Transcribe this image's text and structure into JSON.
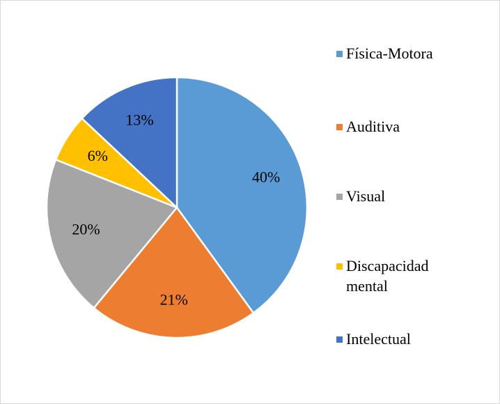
{
  "chart_data": {
    "type": "pie",
    "categories": [
      "Física-Motora",
      "Auditiva",
      "Visual",
      "Discapacidad mental",
      "Intelectual"
    ],
    "values": [
      40,
      21,
      20,
      6,
      13
    ],
    "value_labels": [
      "40%",
      "21%",
      "20%",
      "6%",
      "13%"
    ],
    "colors": [
      "#5b9bd5",
      "#ed7d31",
      "#a5a5a5",
      "#ffc000",
      "#4472c4"
    ],
    "legend": "right"
  }
}
